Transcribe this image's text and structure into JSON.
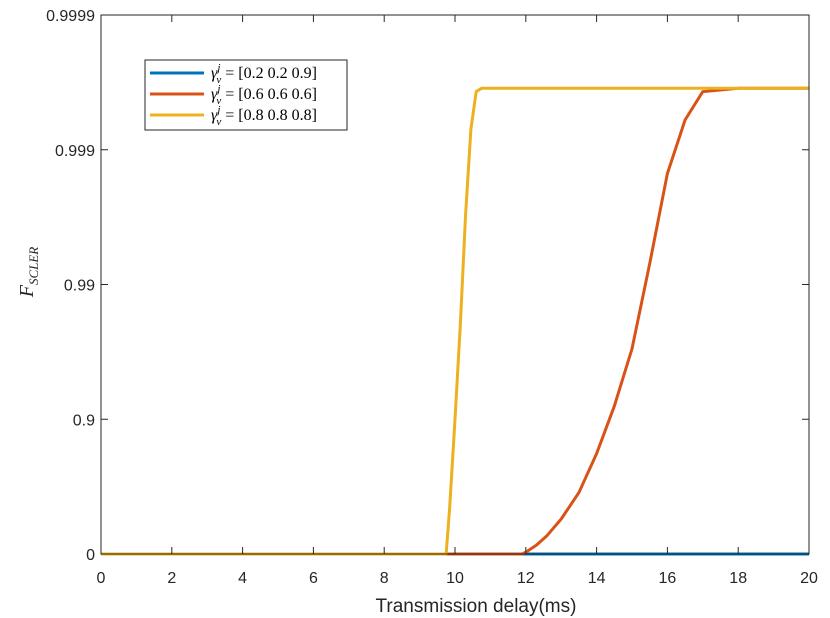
{
  "chart_data": {
    "type": "line",
    "title": "",
    "xlabel": "Transmission delay(ms)",
    "ylabel": {
      "main": "F",
      "sub": "SCLER"
    },
    "xlim": [
      0,
      20
    ],
    "x_ticks": [
      0,
      2,
      4,
      6,
      8,
      10,
      12,
      14,
      16,
      18,
      20
    ],
    "x_tick_labels": [
      "0",
      "2",
      "4",
      "6",
      "8",
      "10",
      "12",
      "14",
      "16",
      "18",
      "20"
    ],
    "y_scale": "log(1-F)",
    "y_ticks": [
      0,
      0.9,
      0.99,
      0.999,
      0.9999
    ],
    "y_tick_labels": [
      "0",
      "0.9",
      "0.99",
      "0.999",
      "0.9999"
    ],
    "ylim": [
      0,
      0.9999
    ],
    "grid": false,
    "legend_position": "top-left",
    "series": [
      {
        "name": "γ_v^j = [0.2 0.2 0.9]",
        "legend": {
          "symbol": "γ",
          "sup": "j",
          "sub": "v",
          "rest": " = [0.2 0.2 0.9]"
        },
        "color": "#0072BD",
        "points": [
          [
            0,
            0
          ],
          [
            12,
            0
          ],
          [
            14,
            0
          ],
          [
            16,
            0
          ],
          [
            18,
            0
          ],
          [
            20,
            0
          ]
        ]
      },
      {
        "name": "γ_v^j = [0.6 0.6 0.6]",
        "legend": {
          "symbol": "γ",
          "sup": "j",
          "sub": "v",
          "rest": " = [0.6 0.6 0.6]"
        },
        "color": "#D95319",
        "points": [
          [
            0,
            0
          ],
          [
            11.9,
            0
          ],
          [
            12.0,
            0.03
          ],
          [
            12.3,
            0.14
          ],
          [
            12.6,
            0.27
          ],
          [
            13.0,
            0.45
          ],
          [
            13.5,
            0.65
          ],
          [
            14.0,
            0.82
          ],
          [
            14.5,
            0.92
          ],
          [
            15.0,
            0.97
          ],
          [
            15.5,
            0.993
          ],
          [
            16.0,
            0.9985
          ],
          [
            16.5,
            0.9994
          ],
          [
            17.0,
            0.99963
          ],
          [
            18.0,
            0.99965
          ],
          [
            20,
            0.99965
          ]
        ]
      },
      {
        "name": "γ_v^j = [0.8 0.8 0.8]",
        "legend": {
          "symbol": "γ",
          "sup": "j",
          "sub": "v",
          "rest": " = [0.8 0.8 0.8]"
        },
        "color": "#EDB120",
        "points": [
          [
            0,
            0
          ],
          [
            9.75,
            0
          ],
          [
            9.85,
            0.55
          ],
          [
            10.0,
            0.9
          ],
          [
            10.15,
            0.98
          ],
          [
            10.3,
            0.997
          ],
          [
            10.45,
            0.9993
          ],
          [
            10.6,
            0.99963
          ],
          [
            10.75,
            0.99965
          ],
          [
            12,
            0.99965
          ],
          [
            16,
            0.99965
          ],
          [
            20,
            0.99965
          ]
        ]
      }
    ]
  }
}
